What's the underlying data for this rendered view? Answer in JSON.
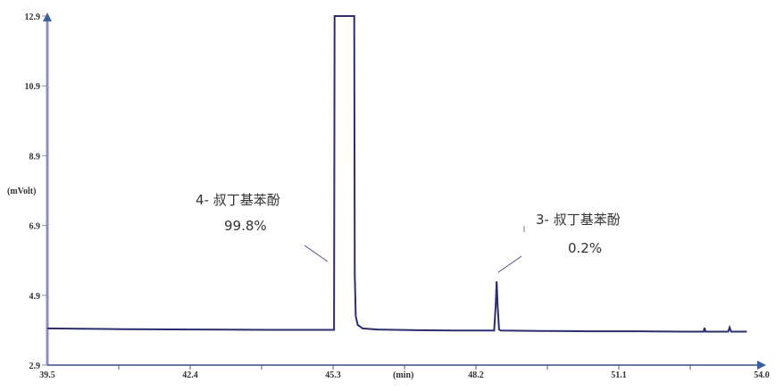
{
  "chart_data": {
    "type": "line",
    "title": "",
    "xlabel": "(min)",
    "ylabel": "(mVolt)",
    "xlim": [
      39.5,
      54.0
    ],
    "ylim": [
      2.9,
      12.9
    ],
    "x_ticks": [
      "39.5",
      "42.4",
      "45.3",
      "48.2",
      "51.1",
      "54.0"
    ],
    "y_ticks": [
      "2.9",
      "4.9",
      "6.9",
      "8.9",
      "10.9",
      "12.9"
    ],
    "grid": false,
    "colors": {
      "axis": "#8c8fc4",
      "trace": "#2a2d6e",
      "xaxis": "#3a4a8a"
    },
    "series": [
      {
        "x": [
          39.5,
          41.0,
          42.5,
          44.0,
          45.3,
          45.32,
          45.33,
          45.73,
          45.74,
          45.76,
          45.8,
          45.9,
          46.2,
          47.0,
          48.0,
          48.57,
          48.6,
          48.62,
          48.64,
          48.67,
          48.7,
          49.5,
          50.5,
          51.5,
          52.5,
          52.82,
          52.84,
          52.86,
          53.32,
          53.35,
          53.38,
          53.7
        ],
        "y": [
          3.95,
          3.93,
          3.92,
          3.91,
          3.91,
          3.91,
          12.9,
          12.9,
          5.5,
          4.3,
          4.05,
          3.95,
          3.92,
          3.9,
          3.89,
          3.89,
          4.6,
          5.3,
          4.6,
          3.92,
          3.89,
          3.88,
          3.87,
          3.87,
          3.86,
          3.86,
          3.97,
          3.86,
          3.86,
          3.98,
          3.86,
          3.86
        ]
      }
    ],
    "annotations": [
      {
        "label": "4- 叔丁基苯酚",
        "value": "99.8%"
      },
      {
        "label": "3- 叔丁基苯酚",
        "value": "0.2%"
      }
    ]
  }
}
